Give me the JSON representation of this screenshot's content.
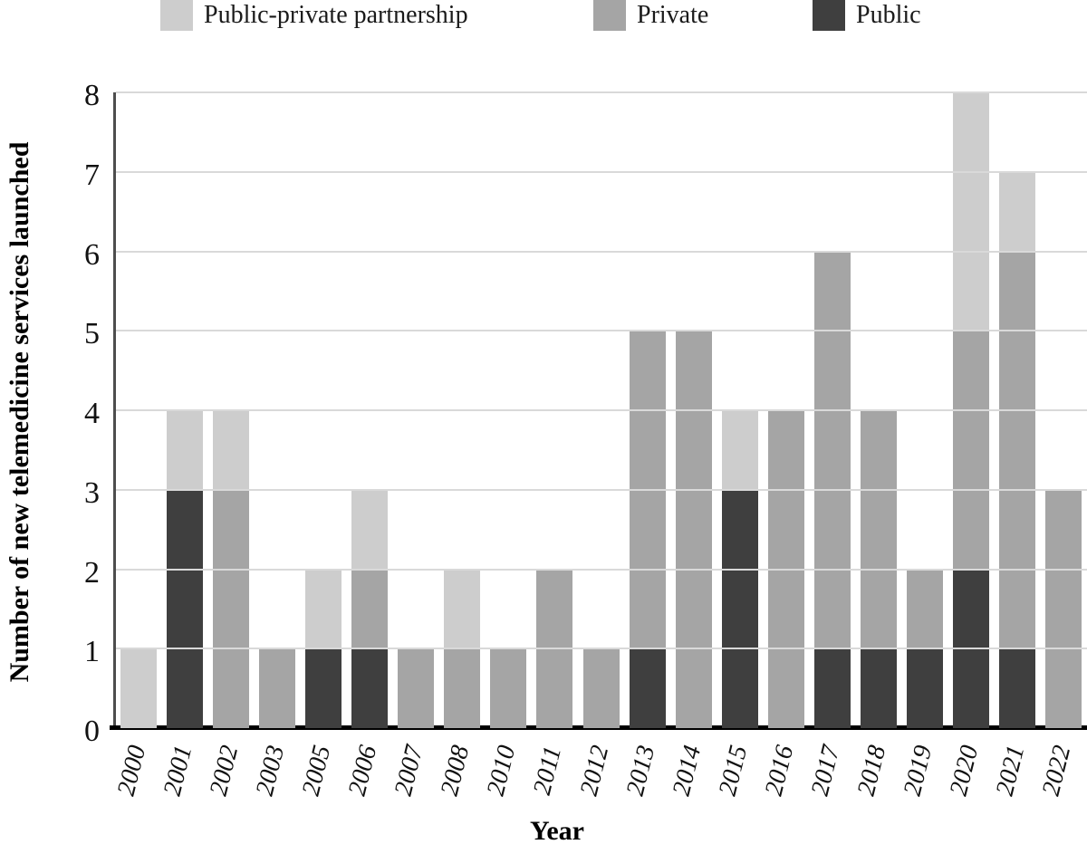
{
  "chart_data": {
    "type": "bar",
    "stacked": true,
    "title": "",
    "xlabel": "Year",
    "ylabel": "Number of new telemedicine services launched",
    "ylim": [
      0,
      8
    ],
    "yticks": [
      "0",
      "1",
      "2",
      "3",
      "4",
      "5",
      "6",
      "7",
      "8"
    ],
    "grid": true,
    "grid_color": "#d9d9d9",
    "legend_position": "top",
    "categories": [
      "2000",
      "2001",
      "2002",
      "2003",
      "2005",
      "2006",
      "2007",
      "2008",
      "2010",
      "2011",
      "2012",
      "2013",
      "2014",
      "2015",
      "2016",
      "2017",
      "2018",
      "2019",
      "2020",
      "2021",
      "2022"
    ],
    "series": [
      {
        "name": "Public",
        "color": "#3f3f3f",
        "values": [
          0,
          3,
          0,
          0,
          1,
          1,
          0,
          0,
          0,
          0,
          0,
          1,
          0,
          3,
          0,
          1,
          1,
          1,
          2,
          1,
          0
        ]
      },
      {
        "name": "Private",
        "color": "#a5a5a5",
        "values": [
          0,
          0,
          3,
          1,
          0,
          1,
          1,
          1,
          1,
          2,
          1,
          4,
          5,
          0,
          4,
          5,
          3,
          1,
          3,
          5,
          3
        ]
      },
      {
        "name": "Public-private partnership",
        "color": "#cdcdcd",
        "values": [
          1,
          1,
          1,
          0,
          1,
          1,
          0,
          1,
          0,
          0,
          0,
          0,
          0,
          1,
          0,
          0,
          0,
          0,
          3,
          1,
          0
        ]
      }
    ],
    "totals": [
      1,
      4,
      4,
      1,
      2,
      3,
      1,
      2,
      1,
      2,
      1,
      5,
      5,
      4,
      4,
      6,
      4,
      2,
      8,
      7,
      3
    ],
    "legend": [
      {
        "label": "Public-private partnership",
        "color": "#cdcdcd"
      },
      {
        "label": "Private",
        "color": "#a5a5a5"
      },
      {
        "label": "Public",
        "color": "#3f3f3f"
      }
    ],
    "axis_colors": {
      "y_spine": "#4d4d4d",
      "x_axis": "#000000"
    }
  }
}
